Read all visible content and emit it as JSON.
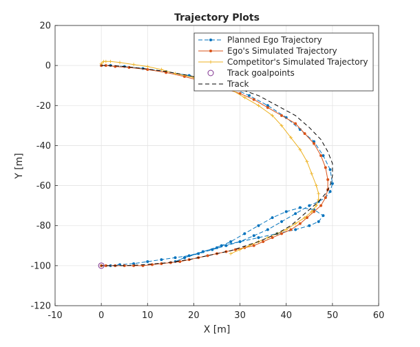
{
  "chart_data": {
    "type": "line",
    "title": "Trajectory Plots",
    "xlabel": "X [m]",
    "ylabel": "Y [m]",
    "xlim": [
      -10,
      60
    ],
    "ylim": [
      -120,
      20
    ],
    "xticks": [
      -10,
      0,
      10,
      20,
      30,
      40,
      50,
      60
    ],
    "yticks": [
      -120,
      -100,
      -80,
      -60,
      -40,
      -20,
      0,
      20
    ],
    "grid": true,
    "legend_position": "top-right",
    "series": [
      {
        "name": "Planned Ego Trajectory",
        "color": "#0072BD",
        "style": "dash-dot-marker",
        "x": [
          0,
          2,
          5,
          9,
          14,
          19,
          24,
          28,
          32,
          36,
          40,
          43,
          46,
          48,
          49.5,
          50,
          49.5,
          48.5,
          47,
          45,
          42,
          39,
          36,
          33,
          30,
          27,
          24,
          21,
          18,
          16,
          18,
          22,
          26,
          30,
          34,
          38,
          42,
          45,
          47,
          48,
          46,
          43,
          40,
          37,
          34,
          31,
          28,
          25,
          22,
          19,
          16,
          13,
          10,
          7,
          4,
          2,
          0
        ],
        "y": [
          0,
          0,
          -0.5,
          -1.5,
          -3,
          -5,
          -8,
          -11,
          -15,
          -20,
          -26,
          -32,
          -38,
          -45,
          -52,
          -59,
          -63,
          -66,
          -68,
          -70,
          -74,
          -78,
          -82,
          -85,
          -88,
          -90,
          -92,
          -94,
          -96,
          -98,
          -96,
          -93,
          -90,
          -88,
          -86,
          -84,
          -82,
          -80,
          -78,
          -75,
          -72,
          -71,
          -73,
          -76,
          -80,
          -84,
          -88,
          -91,
          -93,
          -95,
          -96,
          -97,
          -98,
          -99,
          -99.5,
          -100,
          -100
        ]
      },
      {
        "name": "Ego's Simulated Trajectory",
        "color": "#D95319",
        "style": "solid-dot",
        "x": [
          0,
          1,
          3,
          6,
          10,
          14,
          18,
          22,
          26,
          30,
          33,
          36,
          39,
          42,
          44,
          46,
          47.5,
          48.5,
          49,
          49,
          48.5,
          47.5,
          46,
          44.5,
          43,
          41,
          39,
          37,
          35,
          33,
          31,
          29,
          27,
          25,
          23,
          21,
          19,
          17,
          15,
          13,
          11,
          9,
          7,
          5,
          3,
          1,
          0
        ],
        "y": [
          0,
          0,
          -0.5,
          -1,
          -2,
          -3.5,
          -5.5,
          -8,
          -11,
          -14,
          -17,
          -21,
          -25,
          -29,
          -34,
          -39,
          -45,
          -51,
          -57,
          -62,
          -66,
          -70,
          -73,
          -76,
          -79,
          -82,
          -84,
          -86,
          -88,
          -90,
          -91,
          -92,
          -93,
          -94,
          -95,
          -96,
          -97,
          -98,
          -98.5,
          -99,
          -99.5,
          -100,
          -100,
          -100,
          -100,
          -100,
          -100
        ]
      },
      {
        "name": "Competitor's Simulated Trajectory",
        "color": "#EDB120",
        "style": "solid-plus",
        "x": [
          0,
          0.5,
          1,
          2,
          4,
          7,
          10,
          13,
          16,
          20,
          24,
          28,
          31,
          34,
          37,
          39,
          41,
          43,
          44.5,
          45.5,
          46.5,
          47,
          47,
          46.5,
          45.5,
          44,
          42,
          40,
          38,
          36,
          34,
          32,
          30,
          28
        ],
        "y": [
          1,
          2,
          2,
          2,
          1.5,
          0.5,
          -0.5,
          -2,
          -4,
          -6,
          -9,
          -12,
          -16,
          -20,
          -25,
          -30,
          -36,
          -42,
          -48,
          -54,
          -60,
          -64,
          -67,
          -70,
          -73,
          -76,
          -79,
          -82,
          -84,
          -86,
          -88,
          -90,
          -92,
          -94
        ]
      },
      {
        "name": "Track goalpoints",
        "color": "#7E2F8E",
        "style": "circle-marker",
        "x": [
          0
        ],
        "y": [
          -100
        ]
      },
      {
        "name": "Track",
        "color": "#000000",
        "style": "dashed",
        "x": [
          0,
          2,
          5,
          9,
          14,
          19,
          24,
          29,
          34,
          38,
          42,
          45,
          47.5,
          49,
          50,
          50,
          49.5,
          48.5,
          47,
          45.5,
          44,
          42.5,
          41,
          39.5,
          38,
          36,
          34,
          32,
          30,
          28,
          26,
          24,
          22,
          20,
          18,
          16,
          14,
          12,
          10,
          8,
          6,
          4,
          2,
          0
        ],
        "y": [
          0,
          0,
          -0.5,
          -1.5,
          -3,
          -5,
          -8,
          -11,
          -15,
          -20,
          -25,
          -31,
          -37,
          -43,
          -49,
          -55,
          -60,
          -64,
          -68,
          -71,
          -74,
          -77,
          -80,
          -82,
          -84,
          -86,
          -88,
          -89.5,
          -91,
          -92.5,
          -93.5,
          -94.5,
          -95.5,
          -96.5,
          -97.3,
          -98,
          -98.6,
          -99,
          -99.4,
          -99.7,
          -99.9,
          -100,
          -100,
          -100
        ]
      }
    ]
  }
}
